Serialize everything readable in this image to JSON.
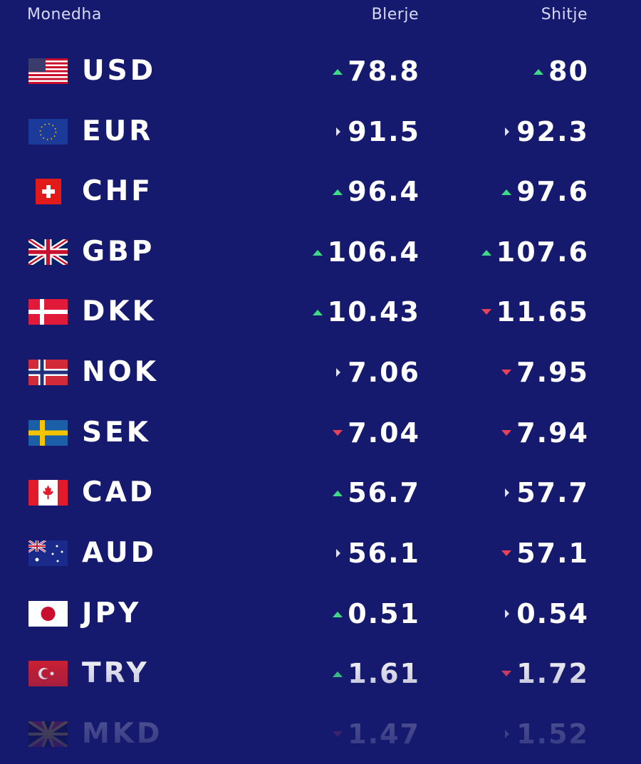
{
  "header": {
    "currency": "Monedha",
    "buy": "Blerje",
    "sell": "Shitje"
  },
  "rows": [
    {
      "code": "USD",
      "buy": 78.8,
      "sell": 80,
      "buy_trend": "up",
      "sell_trend": "up"
    },
    {
      "code": "EUR",
      "buy": 91.5,
      "sell": 92.3,
      "buy_trend": "same",
      "sell_trend": "same"
    },
    {
      "code": "CHF",
      "buy": 96.4,
      "sell": 97.6,
      "buy_trend": "up",
      "sell_trend": "up"
    },
    {
      "code": "GBP",
      "buy": 106.4,
      "sell": 107.6,
      "buy_trend": "up",
      "sell_trend": "up"
    },
    {
      "code": "DKK",
      "buy": 10.43,
      "sell": 11.65,
      "buy_trend": "up",
      "sell_trend": "down"
    },
    {
      "code": "NOK",
      "buy": 7.06,
      "sell": 7.95,
      "buy_trend": "same",
      "sell_trend": "down"
    },
    {
      "code": "SEK",
      "buy": 7.04,
      "sell": 7.94,
      "buy_trend": "down",
      "sell_trend": "down"
    },
    {
      "code": "CAD",
      "buy": 56.7,
      "sell": 57.7,
      "buy_trend": "up",
      "sell_trend": "same"
    },
    {
      "code": "AUD",
      "buy": 56.1,
      "sell": 57.1,
      "buy_trend": "same",
      "sell_trend": "down"
    },
    {
      "code": "JPY",
      "buy": 0.51,
      "sell": 0.54,
      "buy_trend": "up",
      "sell_trend": "same"
    },
    {
      "code": "TRY",
      "buy": 1.61,
      "sell": 1.72,
      "buy_trend": "up",
      "sell_trend": "down"
    },
    {
      "code": "MKD",
      "buy": 1.47,
      "sell": 1.52,
      "buy_trend": "down",
      "sell_trend": "same"
    }
  ]
}
